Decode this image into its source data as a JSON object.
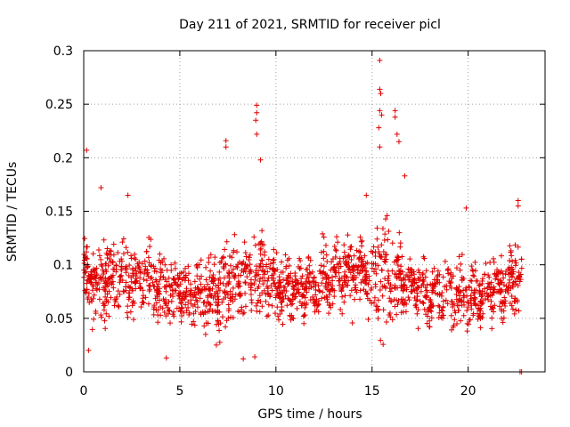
{
  "chart_data": {
    "type": "scatter",
    "title": "Day 211 of 2021, SRMTID for receiver picl",
    "xlabel": "GPS time / hours",
    "ylabel": "SRMTID / TECUs",
    "xlim": [
      0,
      24
    ],
    "ylim": [
      0,
      0.3
    ],
    "x_ticks": [
      0,
      5,
      10,
      15,
      20
    ],
    "x_tick_labels": [
      "0",
      "5",
      "10",
      "15",
      "20"
    ],
    "y_ticks": [
      0,
      0.05,
      0.1,
      0.15,
      0.2,
      0.25,
      0.3
    ],
    "y_tick_labels": [
      "0",
      "0.05",
      "0.1",
      "0.15",
      "0.2",
      "0.25",
      "0.3"
    ],
    "grid": true,
    "marker": "plus",
    "color": "#e00000",
    "trend": {
      "x": [
        0,
        1,
        2,
        3,
        4,
        5,
        6,
        7,
        7.5,
        8,
        8.5,
        9,
        9.5,
        10,
        11,
        12,
        13,
        14,
        15,
        15.5,
        16,
        16.5,
        17,
        18,
        19,
        20,
        21,
        22,
        22.8
      ],
      "center": [
        0.09,
        0.085,
        0.09,
        0.085,
        0.075,
        0.075,
        0.07,
        0.075,
        0.08,
        0.085,
        0.09,
        0.095,
        0.085,
        0.08,
        0.075,
        0.08,
        0.09,
        0.095,
        0.09,
        0.095,
        0.09,
        0.085,
        0.08,
        0.075,
        0.075,
        0.07,
        0.075,
        0.08,
        0.09
      ],
      "spread": [
        0.04,
        0.04,
        0.04,
        0.04,
        0.035,
        0.035,
        0.035,
        0.04,
        0.06,
        0.05,
        0.05,
        0.06,
        0.04,
        0.035,
        0.035,
        0.035,
        0.04,
        0.04,
        0.04,
        0.07,
        0.05,
        0.04,
        0.035,
        0.035,
        0.035,
        0.035,
        0.035,
        0.04,
        0.04
      ]
    },
    "n_points": 1800,
    "highlight_points": [
      {
        "x": 0.15,
        "y": 0.207
      },
      {
        "x": 0.9,
        "y": 0.172
      },
      {
        "x": 4.3,
        "y": 0.013
      },
      {
        "x": 7.4,
        "y": 0.216
      },
      {
        "x": 7.4,
        "y": 0.21
      },
      {
        "x": 8.3,
        "y": 0.012
      },
      {
        "x": 9.0,
        "y": 0.249
      },
      {
        "x": 9.0,
        "y": 0.242
      },
      {
        "x": 8.95,
        "y": 0.235
      },
      {
        "x": 9.0,
        "y": 0.222
      },
      {
        "x": 9.2,
        "y": 0.198
      },
      {
        "x": 15.4,
        "y": 0.291
      },
      {
        "x": 15.4,
        "y": 0.264
      },
      {
        "x": 15.45,
        "y": 0.26
      },
      {
        "x": 15.4,
        "y": 0.244
      },
      {
        "x": 15.5,
        "y": 0.24
      },
      {
        "x": 15.35,
        "y": 0.228
      },
      {
        "x": 15.4,
        "y": 0.21
      },
      {
        "x": 16.2,
        "y": 0.244
      },
      {
        "x": 16.2,
        "y": 0.238
      },
      {
        "x": 16.3,
        "y": 0.222
      },
      {
        "x": 16.4,
        "y": 0.215
      },
      {
        "x": 16.7,
        "y": 0.183
      },
      {
        "x": 14.7,
        "y": 0.165
      },
      {
        "x": 19.9,
        "y": 0.153
      },
      {
        "x": 22.6,
        "y": 0.16
      },
      {
        "x": 22.6,
        "y": 0.155
      },
      {
        "x": 2.3,
        "y": 0.165
      },
      {
        "x": 6.9,
        "y": 0.025
      },
      {
        "x": 8.9,
        "y": 0.014
      },
      {
        "x": 0.25,
        "y": 0.02
      },
      {
        "x": 22.7,
        "y": 0.0
      },
      {
        "x": 22.78,
        "y": 0.0
      }
    ]
  }
}
